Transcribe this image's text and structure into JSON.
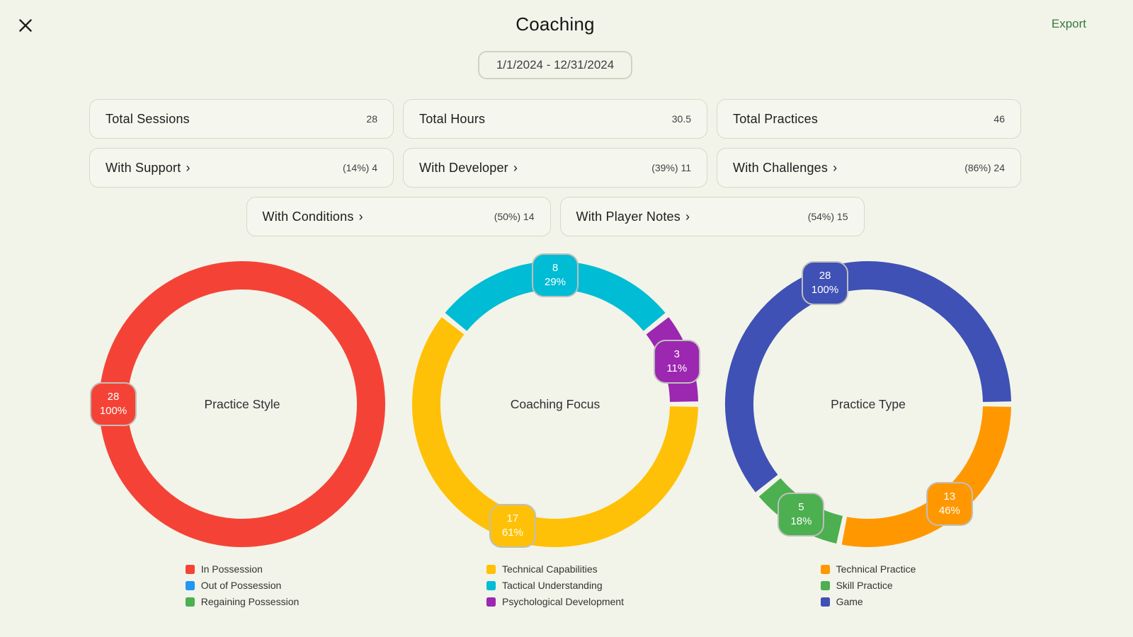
{
  "header": {
    "title": "Coaching",
    "export_label": "Export",
    "close_icon": "x"
  },
  "date_range": "1/1/2024 - 12/31/2024",
  "stats": {
    "cards": [
      {
        "label": "Total Sessions",
        "value": "28"
      },
      {
        "label": "Total Hours",
        "value": "30.5"
      },
      {
        "label": "Total Practices",
        "value": "46"
      },
      {
        "label": "With Support",
        "chevron": "›",
        "value": "(14%) 4"
      },
      {
        "label": "With Developer",
        "chevron": "›",
        "value": "(39%) 11"
      },
      {
        "label": "With Challenges",
        "chevron": "›",
        "value": "(86%) 24"
      },
      {
        "label": "With Conditions",
        "chevron": "›",
        "value": "(50%) 14"
      },
      {
        "label": "With Player Notes",
        "chevron": "›",
        "value": "(54%) 15"
      }
    ]
  },
  "chart_data": [
    {
      "type": "donut",
      "title": "Practice Style",
      "start_angle_deg": 90,
      "legend_position": "bottom",
      "segments": [
        {
          "label": "In Possession",
          "color": "#F44336",
          "value": 28,
          "pct": "100%"
        },
        {
          "label": "Out of Possession",
          "color": "#2196F3",
          "value": 0
        },
        {
          "label": "Regaining Possession",
          "color": "#4CAF50",
          "value": 0
        }
      ]
    },
    {
      "type": "donut",
      "title": "Coaching Focus",
      "start_angle_deg": 90,
      "legend_position": "bottom",
      "segments": [
        {
          "label": "Technical Capabilities",
          "color": "#FFC107",
          "value": 17,
          "pct": "61%"
        },
        {
          "label": "Tactical Understanding",
          "color": "#00BCD4",
          "value": 8,
          "pct": "29%"
        },
        {
          "label": "Psychological Development",
          "color": "#9C27B0",
          "value": 3,
          "pct": "11%"
        }
      ]
    },
    {
      "type": "donut",
      "title": "Practice Type",
      "start_angle_deg": 90,
      "legend_position": "bottom",
      "segments": [
        {
          "label": "Technical Practice",
          "color": "#FF9800",
          "value": 13,
          "pct": "46%"
        },
        {
          "label": "Skill Practice",
          "color": "#4CAF50",
          "value": 5,
          "pct": "18%"
        },
        {
          "label": "Game",
          "color": "#3F51B5",
          "value": 28,
          "pct": "100%"
        }
      ]
    }
  ],
  "colors": {
    "background": "#f2f4e9",
    "card_border": "#d7d9ca",
    "export_green": "#35793f",
    "badge_border": "#bfbfbc",
    "text_dark": "#1d1d1d",
    "text_muted": "#3f4043"
  }
}
